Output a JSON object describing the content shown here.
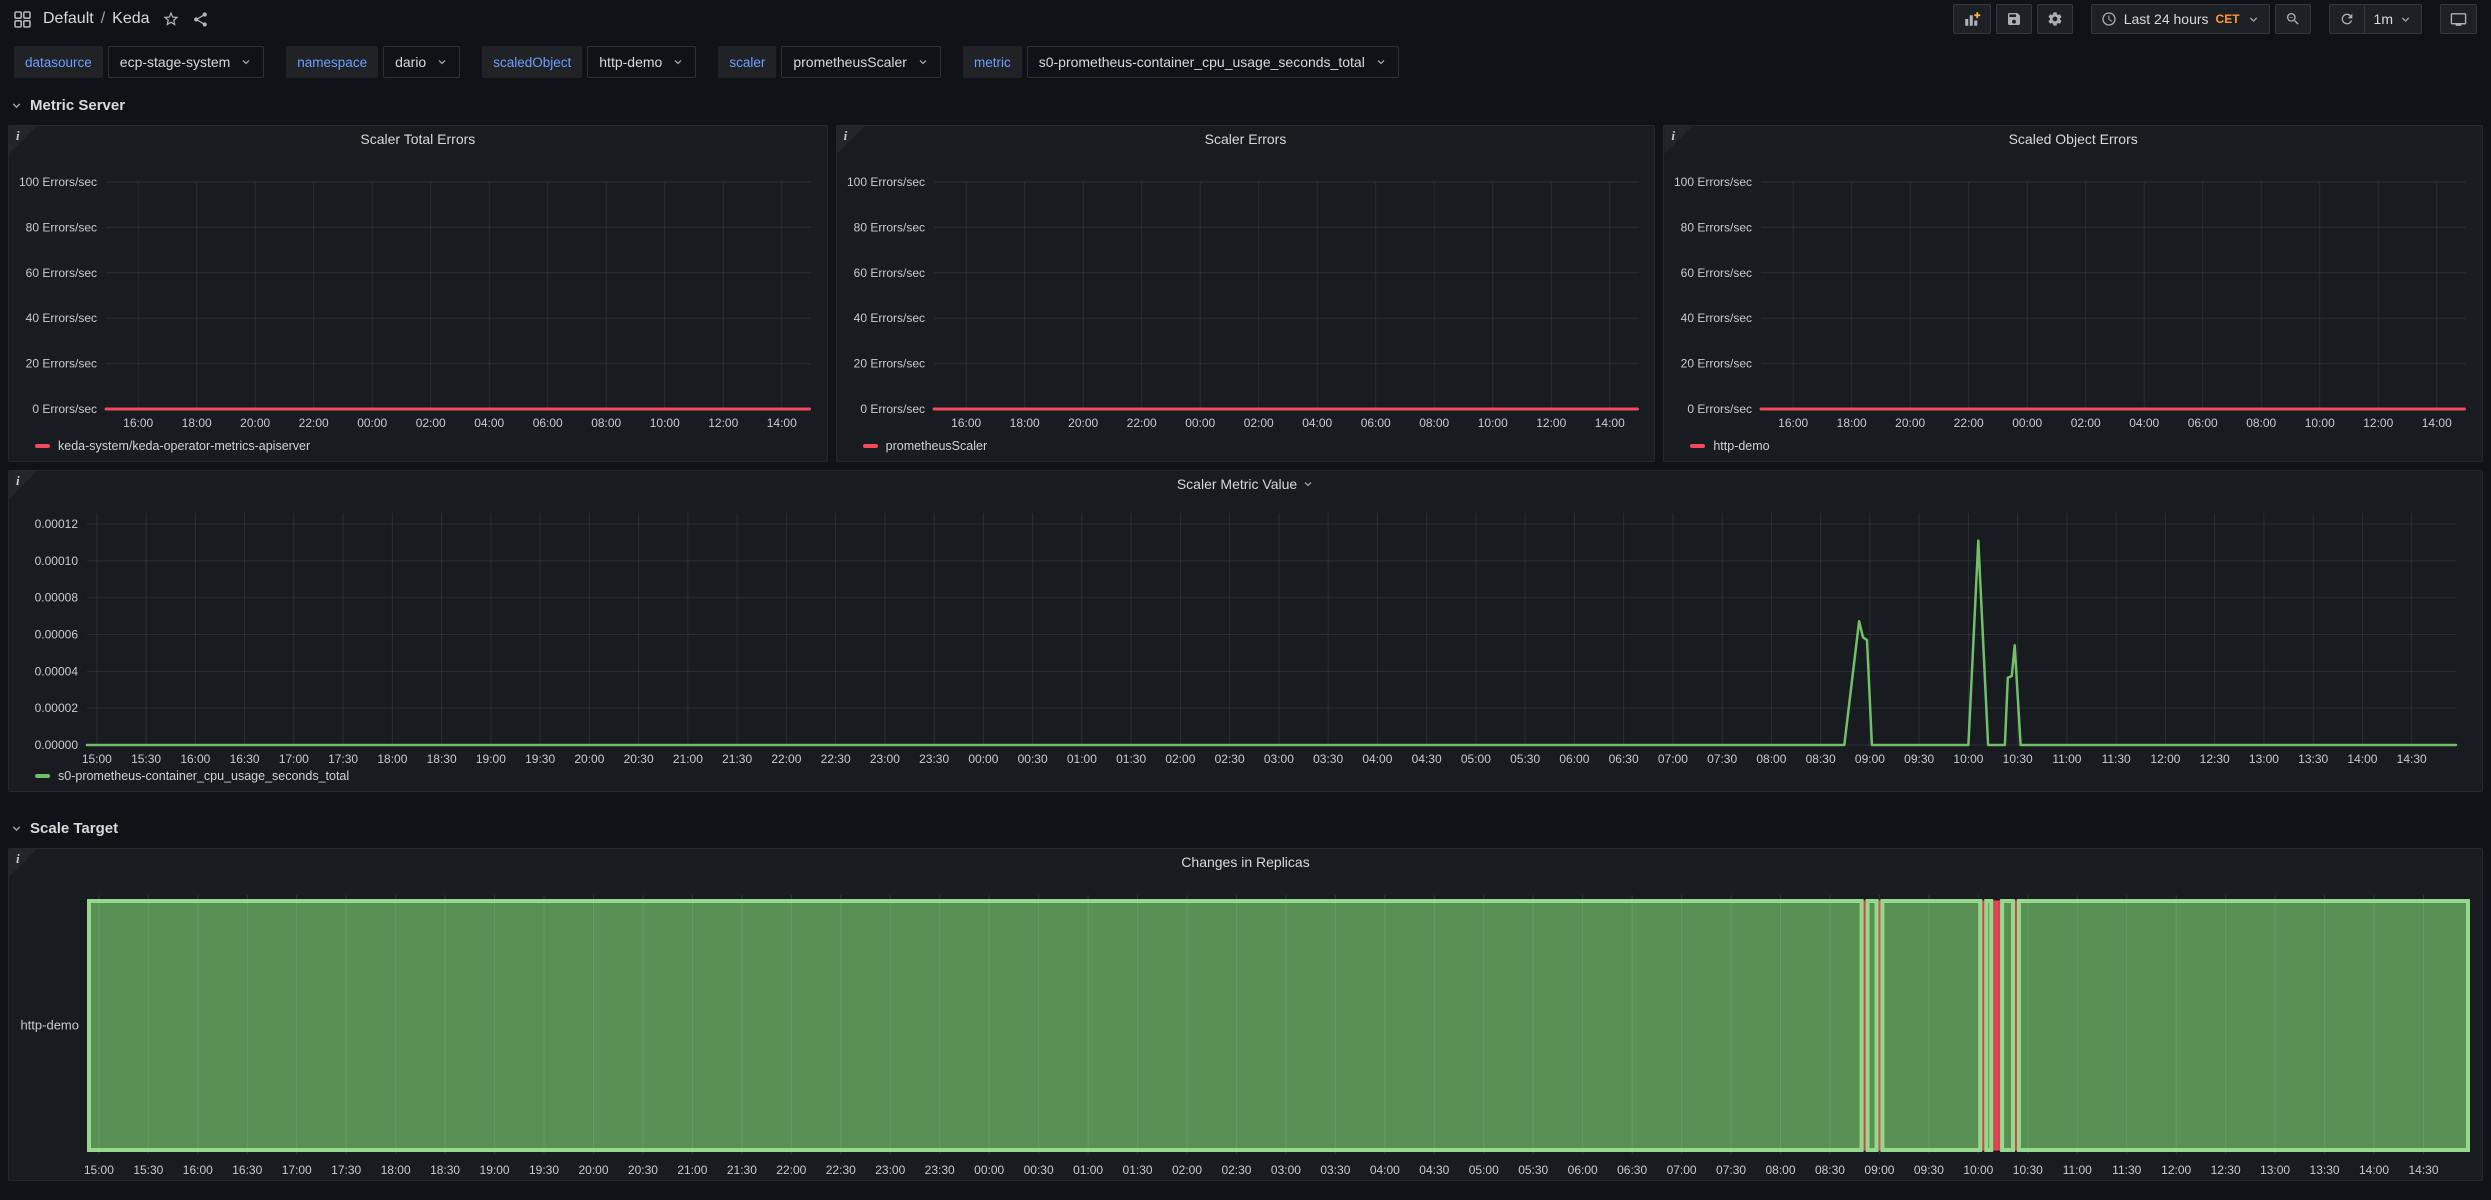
{
  "nav": {
    "folder": "Default",
    "separator": "/",
    "dashboard": "Keda",
    "time_label": "Last 24 hours",
    "timezone": "CET",
    "refresh_interval": "1m"
  },
  "variables": [
    {
      "label": "datasource",
      "value": "ecp-stage-system"
    },
    {
      "label": "namespace",
      "value": "dario"
    },
    {
      "label": "scaledObject",
      "value": "http-demo"
    },
    {
      "label": "scaler",
      "value": "prometheusScaler"
    },
    {
      "label": "metric",
      "value": "s0-prometheus-container_cpu_usage_seconds_total"
    }
  ],
  "rows": [
    {
      "title": "Metric Server"
    },
    {
      "title": "Scale Target"
    }
  ],
  "colors": {
    "red": "#F2495C",
    "green": "#73BF69",
    "green_border": "#96D98D",
    "orange": "#FF9830",
    "blue": "#6E9FFF"
  },
  "chart_data": [
    {
      "type": "line",
      "title": "Scaler Total Errors",
      "x_range": [
        -0.1,
        24.0
      ],
      "y_range": [
        0,
        100
      ],
      "y_ticks": [
        0,
        20,
        40,
        60,
        80,
        100
      ],
      "y_tick_labels": [
        "0 Errors/sec",
        "20 Errors/sec",
        "40 Errors/sec",
        "60 Errors/sec",
        "80 Errors/sec",
        "100 Errors/sec"
      ],
      "x_ticks_start": 1,
      "x_ticks_step": 2,
      "x_tick_labels": [
        "16:00",
        "18:00",
        "20:00",
        "22:00",
        "00:00",
        "02:00",
        "04:00",
        "06:00",
        "08:00",
        "10:00",
        "12:00",
        "14:00"
      ],
      "series": [
        {
          "name": "keda-system/keda-operator-metrics-apiserver",
          "color": "#F2495C",
          "width": 3,
          "points": [
            [
              -0.1,
              0
            ],
            [
              23.95,
              0
            ]
          ]
        }
      ]
    },
    {
      "type": "line",
      "title": "Scaler Errors",
      "x_range": [
        -0.1,
        24.0
      ],
      "y_range": [
        0,
        100
      ],
      "y_ticks": [
        0,
        20,
        40,
        60,
        80,
        100
      ],
      "y_tick_labels": [
        "0 Errors/sec",
        "20 Errors/sec",
        "40 Errors/sec",
        "60 Errors/sec",
        "80 Errors/sec",
        "100 Errors/sec"
      ],
      "x_ticks_start": 1,
      "x_ticks_step": 2,
      "x_tick_labels": [
        "16:00",
        "18:00",
        "20:00",
        "22:00",
        "00:00",
        "02:00",
        "04:00",
        "06:00",
        "08:00",
        "10:00",
        "12:00",
        "14:00"
      ],
      "series": [
        {
          "name": "prometheusScaler",
          "color": "#F2495C",
          "width": 3,
          "points": [
            [
              -0.1,
              0
            ],
            [
              23.95,
              0
            ]
          ]
        }
      ]
    },
    {
      "type": "line",
      "title": "Scaled Object Errors",
      "x_range": [
        -0.1,
        24.0
      ],
      "y_range": [
        0,
        100
      ],
      "y_ticks": [
        0,
        20,
        40,
        60,
        80,
        100
      ],
      "y_tick_labels": [
        "0 Errors/sec",
        "20 Errors/sec",
        "40 Errors/sec",
        "60 Errors/sec",
        "80 Errors/sec",
        "100 Errors/sec"
      ],
      "x_ticks_start": 1,
      "x_ticks_step": 2,
      "x_tick_labels": [
        "16:00",
        "18:00",
        "20:00",
        "22:00",
        "00:00",
        "02:00",
        "04:00",
        "06:00",
        "08:00",
        "10:00",
        "12:00",
        "14:00"
      ],
      "series": [
        {
          "name": "http-demo",
          "color": "#F2495C",
          "width": 3,
          "points": [
            [
              -0.1,
              0
            ],
            [
              23.95,
              0
            ]
          ]
        }
      ]
    },
    {
      "type": "line",
      "title": "Scaler Metric Value",
      "has_menu": true,
      "x_range": [
        -0.1,
        23.95
      ],
      "y_range": [
        0,
        0.000126
      ],
      "y_ticks": [
        0,
        2e-05,
        4e-05,
        6e-05,
        8e-05,
        0.0001,
        0.00012
      ],
      "y_tick_labels": [
        "0.00000",
        "0.00002",
        "0.00004",
        "0.00006",
        "0.00008",
        "0.00010",
        "0.00012"
      ],
      "x_ticks_start": 0,
      "x_ticks_step": 0.5,
      "x_tick_labels": [
        "15:00",
        "15:30",
        "16:00",
        "16:30",
        "17:00",
        "17:30",
        "18:00",
        "18:30",
        "19:00",
        "19:30",
        "20:00",
        "20:30",
        "21:00",
        "21:30",
        "22:00",
        "22:30",
        "23:00",
        "23:30",
        "00:00",
        "00:30",
        "01:00",
        "01:30",
        "02:00",
        "02:30",
        "03:00",
        "03:30",
        "04:00",
        "04:30",
        "05:00",
        "05:30",
        "06:00",
        "06:30",
        "07:00",
        "07:30",
        "08:00",
        "08:30",
        "09:00",
        "09:30",
        "10:00",
        "10:30",
        "11:00",
        "11:30",
        "12:00",
        "12:30",
        "13:00",
        "13:30",
        "14:00",
        "14:30"
      ],
      "series": [
        {
          "name": "s0-prometheus-container_cpu_usage_seconds_total",
          "color": "#73BF69",
          "width": 2.5,
          "points": [
            [
              -0.1,
              0
            ],
            [
              17.74,
              0
            ],
            [
              17.89,
              6.72e-05
            ],
            [
              17.93,
              5.85e-05
            ],
            [
              17.97,
              5.7e-05
            ],
            [
              18.02,
              0
            ],
            [
              19.0,
              0
            ],
            [
              19.1,
              0.000111
            ],
            [
              19.2,
              0
            ],
            [
              19.37,
              0
            ],
            [
              19.4,
              3.65e-05
            ],
            [
              19.44,
              3.75e-05
            ],
            [
              19.47,
              5.42e-05
            ],
            [
              19.53,
              0
            ],
            [
              23.95,
              0
            ]
          ]
        }
      ]
    },
    {
      "type": "state-timeline",
      "title": "Changes in Replicas",
      "y_label": "http-demo",
      "x_range": [
        -0.1,
        23.95
      ],
      "x_ticks_start": 0,
      "x_ticks_step": 0.5,
      "x_tick_labels": [
        "15:00",
        "15:30",
        "16:00",
        "16:30",
        "17:00",
        "17:30",
        "18:00",
        "18:30",
        "19:00",
        "19:30",
        "20:00",
        "20:30",
        "21:00",
        "21:30",
        "22:00",
        "22:30",
        "23:00",
        "23:30",
        "00:00",
        "00:30",
        "01:00",
        "01:30",
        "02:00",
        "02:30",
        "03:00",
        "03:30",
        "04:00",
        "04:30",
        "05:00",
        "05:30",
        "06:00",
        "06:30",
        "07:00",
        "07:30",
        "08:00",
        "08:30",
        "09:00",
        "09:30",
        "10:00",
        "10:30",
        "11:00",
        "11:30",
        "12:00",
        "12:30",
        "13:00",
        "13:30",
        "14:00",
        "14:30"
      ],
      "state_colors": {
        "ok": {
          "fill": "#73BF69",
          "opacity": 0.72,
          "border": "#96D98D",
          "bw": 4
        },
        "error": {
          "fill": "#F2495C",
          "opacity": 0.85,
          "border": "#F2495C",
          "bw": 1
        }
      },
      "segments": [
        [
          -0.1,
          17.82,
          "ok"
        ],
        [
          17.82,
          17.88,
          "error"
        ],
        [
          17.88,
          17.97,
          "ok"
        ],
        [
          17.97,
          18.03,
          "error"
        ],
        [
          18.03,
          19.02,
          "ok"
        ],
        [
          19.02,
          19.08,
          "error"
        ],
        [
          19.08,
          19.13,
          "ok"
        ],
        [
          19.13,
          19.18,
          "error"
        ],
        [
          19.19,
          19.24,
          "error"
        ],
        [
          19.24,
          19.35,
          "ok"
        ],
        [
          19.35,
          19.41,
          "error"
        ],
        [
          19.41,
          23.95,
          "ok"
        ]
      ]
    }
  ]
}
